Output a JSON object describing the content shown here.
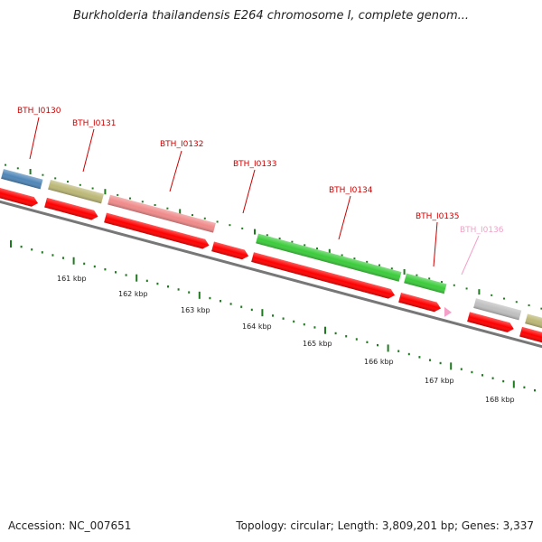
{
  "title": "Burkholderia thailandensis E264 chromosome I, complete genom...",
  "footer": {
    "accession": "Accession: NC_007651",
    "summary": "Topology: circular; Length: 3,809,201 bp; Genes: 3,337"
  },
  "colors": {
    "label": "#cc0000",
    "label_faded": "#f4a0c8",
    "cds": "#ff0000",
    "backbone": "#777777",
    "tick": "#1f7a1f"
  },
  "scale_labels": [
    "161 kbp",
    "162 kbp",
    "163 kbp",
    "164 kbp",
    "165 kbp",
    "166 kbp",
    "167 kbp",
    "168 kbp"
  ],
  "genes": [
    {
      "name": "BTH_I0130",
      "color": "#4f86b8"
    },
    {
      "name": "BTH_I0131",
      "color": "#bcb877"
    },
    {
      "name": "BTH_I0132",
      "color": "#f08a8a"
    },
    {
      "name": "BTH_I0133",
      "color": "#ff0000"
    },
    {
      "name": "BTH_I0134",
      "color": "#3ccc3c"
    },
    {
      "name": "BTH_I0135",
      "color": "#3ccc3c"
    },
    {
      "name": "BTH_I0136",
      "color": "#f4a0c8"
    },
    {
      "name": "",
      "color": "#bfbfbf"
    },
    {
      "name": "",
      "color": "#bcb877"
    }
  ]
}
